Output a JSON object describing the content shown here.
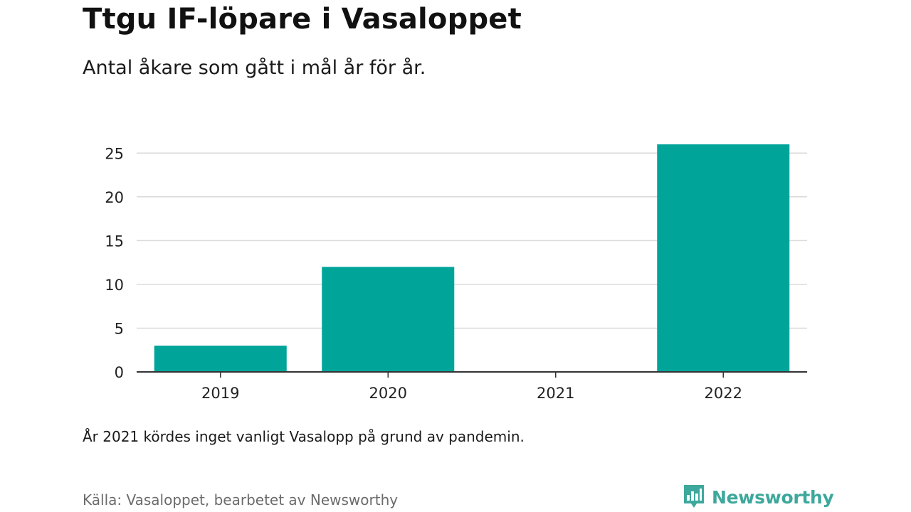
{
  "header": {
    "title": "Ttgu IF-löpare i Vasaloppet",
    "subtitle": "Antal åkare som gått i mål år för år."
  },
  "footer": {
    "note": "År 2021 kördes inget vanligt Vasalopp på grund av pandemin.",
    "source": "Källa: Vasaloppet, bearbetet av Newsworthy",
    "brand": "Newsworthy"
  },
  "colors": {
    "bar": "#00a499",
    "grid": "#d9d9d9",
    "axis": "#333333",
    "brand": "#3da89b"
  },
  "chart_data": {
    "type": "bar",
    "title": "Ttgu IF-löpare i Vasaloppet",
    "subtitle": "Antal åkare som gått i mål år för år.",
    "categories": [
      "2019",
      "2020",
      "2021",
      "2022"
    ],
    "values": [
      3,
      12,
      0,
      26
    ],
    "yticks": [
      0,
      5,
      10,
      15,
      20,
      25
    ],
    "ylim": [
      0,
      26.5
    ],
    "grid": true,
    "xlabel": "",
    "ylabel": ""
  }
}
